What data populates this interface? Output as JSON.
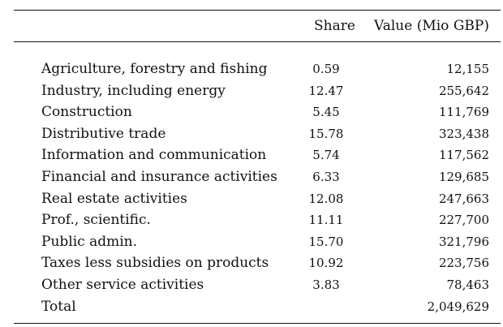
{
  "table": {
    "headers": {
      "label": "",
      "share": "Share",
      "value": "Value (Mio GBP)"
    },
    "rows": [
      {
        "label": "Agriculture, forestry and fishing",
        "share": "0.59",
        "value": "12,155"
      },
      {
        "label": "Industry, including energy",
        "share": "12.47",
        "value": "255,642"
      },
      {
        "label": "Construction",
        "share": "5.45",
        "value": "111,769"
      },
      {
        "label": "Distributive trade",
        "share": "15.78",
        "value": "323,438"
      },
      {
        "label": "Information and communication",
        "share": "5.74",
        "value": "117,562"
      },
      {
        "label": "Financial and insurance activities",
        "share": "6.33",
        "value": "129,685"
      },
      {
        "label": "Real estate activities",
        "share": "12.08",
        "value": "247,663"
      },
      {
        "label": "Prof., scientific.",
        "share": "11.11",
        "value": "227,700"
      },
      {
        "label": "Public admin.",
        "share": "15.70",
        "value": "321,796"
      },
      {
        "label": "Taxes less subsidies on products",
        "share": "10.92",
        "value": "223,756"
      },
      {
        "label": "Other service activities",
        "share": "3.83",
        "value": "78,463"
      },
      {
        "label": "Total",
        "share": "",
        "value": "2,049,629"
      }
    ]
  }
}
